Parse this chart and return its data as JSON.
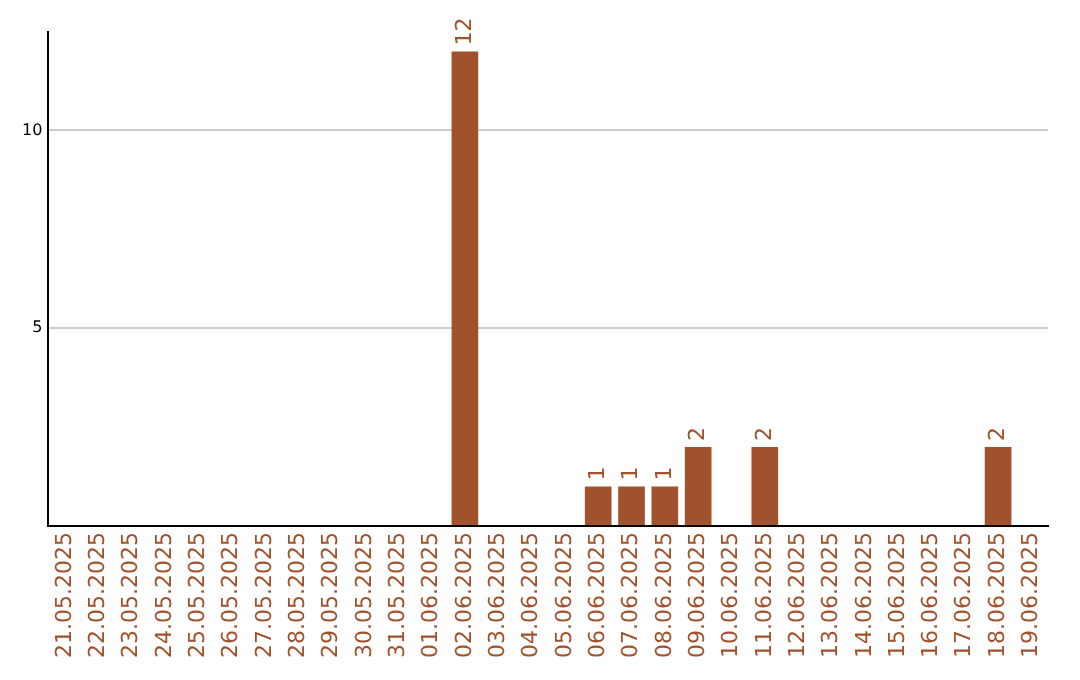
{
  "chart_data": {
    "type": "bar",
    "categories": [
      "21.05.2025",
      "22.05.2025",
      "23.05.2025",
      "24.05.2025",
      "25.05.2025",
      "26.05.2025",
      "27.05.2025",
      "28.05.2025",
      "29.05.2025",
      "30.05.2025",
      "31.05.2025",
      "01.06.2025",
      "02.06.2025",
      "03.06.2025",
      "04.06.2025",
      "05.06.2025",
      "06.06.2025",
      "07.06.2025",
      "08.06.2025",
      "09.06.2025",
      "10.06.2025",
      "11.06.2025",
      "12.06.2025",
      "13.06.2025",
      "14.06.2025",
      "15.06.2025",
      "16.06.2025",
      "17.06.2025",
      "18.06.2025",
      "19.06.2025"
    ],
    "values": [
      0,
      0,
      0,
      0,
      0,
      0,
      0,
      0,
      0,
      0,
      0,
      0,
      12,
      0,
      0,
      0,
      1,
      1,
      1,
      2,
      0,
      2,
      0,
      0,
      0,
      0,
      0,
      0,
      2,
      0
    ],
    "value_labels": [
      null,
      null,
      null,
      null,
      null,
      null,
      null,
      null,
      null,
      null,
      null,
      null,
      "12",
      null,
      null,
      null,
      "1",
      "1",
      "1",
      "2",
      null,
      "2",
      null,
      null,
      null,
      null,
      null,
      null,
      "2",
      null
    ],
    "color": "#a0522d",
    "ylim": [
      0,
      12.5
    ],
    "yticks": [
      {
        "value": 0,
        "label": null
      },
      5,
      10
    ],
    "grid": "y"
  }
}
